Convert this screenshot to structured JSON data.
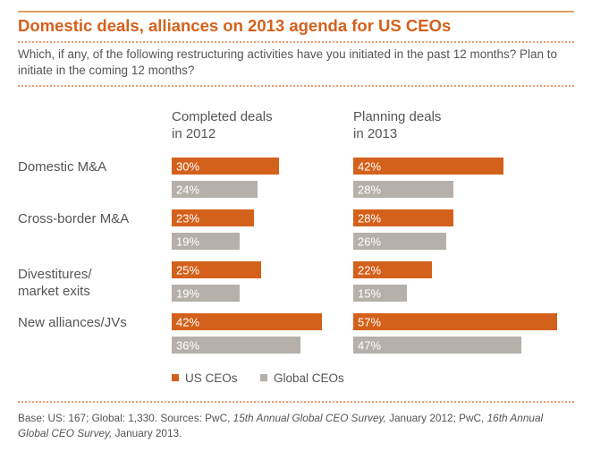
{
  "title": "Domestic deals, alliances on 2013 agenda for US CEOs",
  "subtitle": "Which, if any, of the following restructuring activities have you initiated in the past 12 months? Plan to initiate in the coming 12 months?",
  "chart_data": {
    "type": "bar",
    "orientation": "horizontal",
    "panels": [
      {
        "title_lines": [
          "Completed deals",
          "in 2012"
        ]
      },
      {
        "title_lines": [
          "Planning deals",
          "in 2013"
        ]
      }
    ],
    "categories": [
      [
        "Domestic M&A"
      ],
      [
        "Cross-border M&A"
      ],
      [
        "Divestitures/",
        "market exits"
      ],
      [
        "New alliances/JVs"
      ]
    ],
    "series": [
      {
        "name": "US CEOs",
        "color": "#d4611b",
        "completed": [
          30,
          23,
          25,
          42
        ],
        "planning": [
          42,
          28,
          22,
          57
        ]
      },
      {
        "name": "Global CEOs",
        "color": "#b5b0aa",
        "completed": [
          24,
          19,
          19,
          36
        ],
        "planning": [
          28,
          26,
          15,
          47
        ]
      }
    ],
    "value_suffix": "%",
    "legend": "bottom-left"
  },
  "footnote": {
    "p1": "Base: US: 167; Global: 1,330. Sources: PwC, ",
    "i1": "15th Annual Global CEO Survey,",
    "p2": " January 2012; PwC, ",
    "i2": "16th Annual Global CEO Survey,",
    "p3": " January 2013."
  }
}
